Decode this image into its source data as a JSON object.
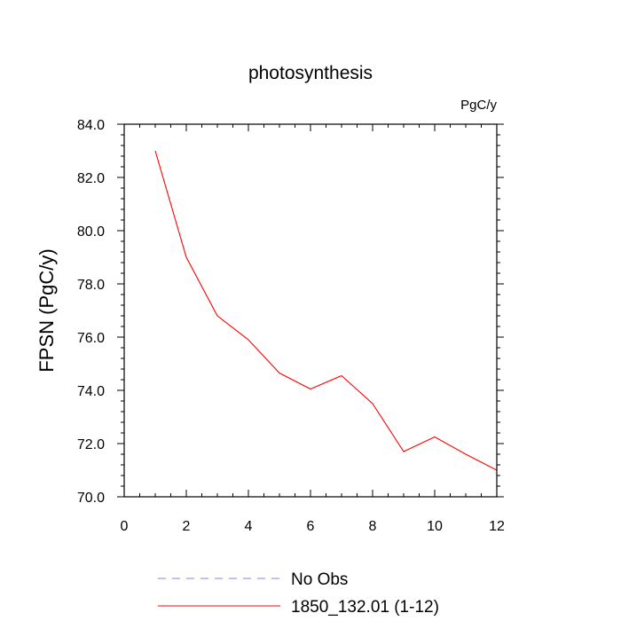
{
  "chart_data": {
    "type": "line",
    "title": "photosynthesis",
    "units_label": "PgC/y",
    "ylabel": "FPSN  (PgC/y)",
    "xlabel": "",
    "xlim": [
      0,
      12
    ],
    "ylim": [
      70,
      84
    ],
    "x_ticks": [
      0,
      2,
      4,
      6,
      8,
      10,
      12
    ],
    "x_tick_labels": [
      "0",
      "2",
      "4",
      "6",
      "8",
      "10",
      "12"
    ],
    "y_ticks": [
      70,
      72,
      74,
      76,
      78,
      80,
      82,
      84
    ],
    "y_tick_labels": [
      "70.0",
      "72.0",
      "74.0",
      "76.0",
      "78.0",
      "80.0",
      "82.0",
      "84.0"
    ],
    "grid": false,
    "legend_position": "bottom",
    "series": [
      {
        "name": "1850_132.01 (1-12)",
        "color": "#ff0000",
        "style": "solid",
        "x": [
          1,
          2,
          3,
          4,
          5,
          6,
          7,
          8,
          9,
          10,
          11,
          12
        ],
        "values": [
          83.0,
          79.0,
          76.8,
          75.9,
          74.65,
          74.05,
          74.55,
          73.5,
          71.7,
          72.25,
          71.6,
          71.0
        ]
      }
    ],
    "legend": [
      {
        "label": "No Obs",
        "color": "#8080ff",
        "style": "dashed"
      },
      {
        "label": "1850_132.01 (1-12)",
        "color": "#ff0000",
        "style": "solid"
      }
    ]
  }
}
